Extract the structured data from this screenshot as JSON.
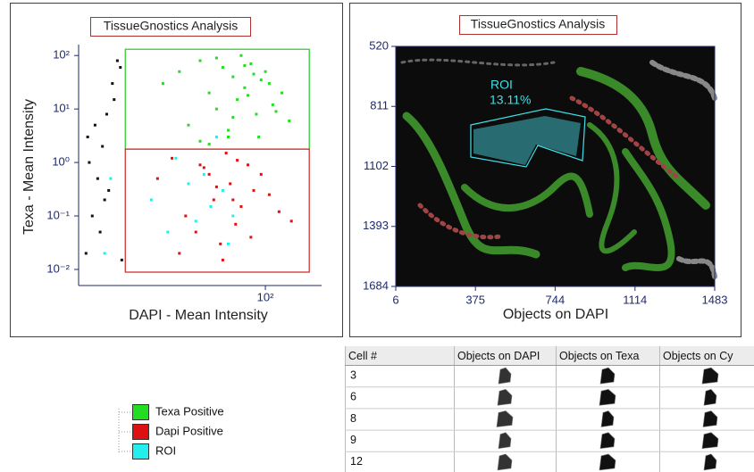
{
  "scatter_panel": {
    "title": "TissueGnostics Analysis",
    "x_label": "DAPI - Mean Intensity",
    "y_label": "Texa - Mean Intensity",
    "log_x": true,
    "log_y": true,
    "xlim": [
      1,
      400
    ],
    "ylim": [
      0.005,
      160
    ],
    "xticks": [
      {
        "value": 100,
        "label": "10²"
      }
    ],
    "yticks": [
      {
        "value": 0.01,
        "label": "10⁻²"
      },
      {
        "value": 0.1,
        "label": "10⁻¹"
      },
      {
        "value": 1,
        "label": "10⁰"
      },
      {
        "value": 10,
        "label": "10¹"
      },
      {
        "value": 100,
        "label": "10²"
      }
    ],
    "gates": [
      {
        "color": "#22cc22",
        "x": [
          3.16,
          295
        ],
        "y": [
          1.78,
          131
        ]
      },
      {
        "color": "#cc2222",
        "x": [
          3.16,
          295
        ],
        "y": [
          0.0089,
          1.78
        ]
      }
    ],
    "series": [
      {
        "color": "#111111",
        "x": [
          1.2,
          1.4,
          1.6,
          1.8,
          2.0,
          2.3,
          2.6,
          2.9,
          1.3,
          1.5,
          1.7,
          2.1,
          2.4,
          2.8,
          1.9,
          1.25
        ],
        "y": [
          0.02,
          0.1,
          0.5,
          2,
          8,
          30,
          80,
          0.015,
          1,
          5,
          0.05,
          0.3,
          15,
          60,
          0.2,
          3
        ]
      },
      {
        "name": "Texa Positive",
        "color": "#22dd22",
        "x": [
          8,
          12,
          15,
          20,
          25,
          30,
          35,
          40,
          45,
          50,
          60,
          70,
          80,
          90,
          100,
          120,
          150,
          180,
          20,
          30,
          40,
          55,
          65,
          75,
          85,
          110,
          130,
          25,
          45,
          60
        ],
        "y": [
          30,
          50,
          5,
          80,
          20,
          10,
          60,
          3,
          40,
          15,
          25,
          70,
          8,
          35,
          50,
          12,
          20,
          6,
          2.5,
          90,
          4,
          100,
          18,
          45,
          3,
          30,
          9,
          2.2,
          7,
          65
        ]
      },
      {
        "name": "Dapi Positive",
        "color": "#dd1111",
        "x": [
          7,
          10,
          14,
          18,
          22,
          28,
          33,
          38,
          42,
          48,
          55,
          65,
          75,
          90,
          110,
          140,
          190,
          12,
          25,
          35,
          50,
          70,
          30,
          45,
          20
        ],
        "y": [
          0.5,
          1.2,
          0.1,
          0.05,
          0.8,
          0.2,
          0.03,
          1.5,
          0.4,
          0.07,
          0.15,
          0.9,
          0.3,
          0.6,
          0.25,
          0.12,
          0.08,
          0.02,
          0.6,
          0.015,
          1.1,
          0.04,
          0.35,
          0.2,
          0.9
        ]
      },
      {
        "name": "ROI",
        "color": "#22eeee",
        "x": [
          6,
          9,
          11,
          15,
          18,
          22,
          26,
          30,
          35,
          40,
          45,
          1.9,
          2.2
        ],
        "y": [
          0.2,
          0.05,
          1.2,
          0.4,
          0.08,
          0.6,
          0.15,
          3,
          0.3,
          0.03,
          0.1,
          0.02,
          0.5
        ]
      }
    ]
  },
  "image_panel": {
    "title": "TissueGnostics Analysis",
    "x_label": "Objects on DAPI",
    "xlim": [
      6,
      1483
    ],
    "ylim": [
      1684,
      520
    ],
    "xticks": [
      6,
      375,
      744,
      1114,
      1483
    ],
    "yticks": [
      520,
      811,
      1102,
      1393,
      1684
    ],
    "roi_label": "ROI",
    "roi_percent": "13.11%"
  },
  "table": {
    "headers": [
      "Cell #",
      "Objects on DAPI",
      "Objects on Texa",
      "Objects on Cy"
    ],
    "rows": [
      "3",
      "6",
      "8",
      "9",
      "12"
    ]
  }
}
